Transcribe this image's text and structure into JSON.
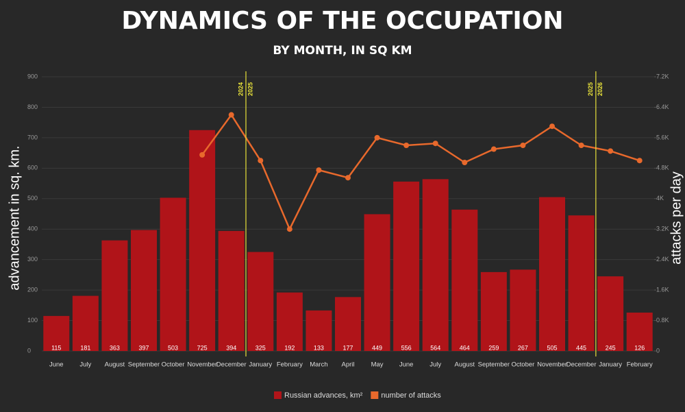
{
  "chart_data": {
    "type": "bar_line",
    "title": "DYNAMICS OF THE OCCUPATION",
    "subtitle": "BY MONTH, IN SQ KM",
    "y_label": "advancement in sq. km.",
    "y2_label": "attacks per day",
    "categories": [
      "June",
      "July",
      "August",
      "September",
      "October",
      "November",
      "December",
      "January",
      "February",
      "March",
      "April",
      "May",
      "June",
      "July",
      "August",
      "September",
      "October",
      "November",
      "December",
      "January",
      "February"
    ],
    "series": [
      {
        "name": "Russian advances, km²",
        "color": "#b01419",
        "type": "bar",
        "values": [
          115,
          181,
          363,
          397,
          503,
          725,
          394,
          325,
          192,
          133,
          177,
          449,
          556,
          564,
          464,
          259,
          267,
          505,
          445,
          245,
          126
        ]
      },
      {
        "name": "number of attacks",
        "color": "#e8692c",
        "type": "line",
        "axis": "y2",
        "values": [
          null,
          null,
          null,
          null,
          null,
          5150,
          6200,
          5000,
          3200,
          4750,
          4550,
          5600,
          5400,
          5450,
          4950,
          5300,
          5400,
          5900,
          5400,
          5250,
          5000
        ]
      }
    ],
    "ylim": [
      0,
      900
    ],
    "yticks": [
      0,
      100,
      200,
      300,
      400,
      500,
      600,
      700,
      800,
      900
    ],
    "y2lim": [
      0,
      7200
    ],
    "y2ticks": [
      0,
      {
        "value": 800,
        "label": "0.8K"
      },
      {
        "value": 1600,
        "label": "1.6K"
      },
      {
        "value": 2400,
        "label": "2.4K"
      },
      {
        "value": 3200,
        "label": "3.2K"
      },
      {
        "value": 4000,
        "label": "4K"
      },
      {
        "value": 4800,
        "label": "4.8K"
      },
      {
        "value": 5600,
        "label": "5.6K"
      },
      {
        "value": 6400,
        "label": "6.4K"
      },
      {
        "value": 7200,
        "label": "7.2K"
      }
    ],
    "year_dividers": [
      {
        "before": "2024",
        "after": "2025"
      },
      {
        "before": "2025",
        "after": "2026"
      }
    ],
    "legend": "bottom"
  }
}
